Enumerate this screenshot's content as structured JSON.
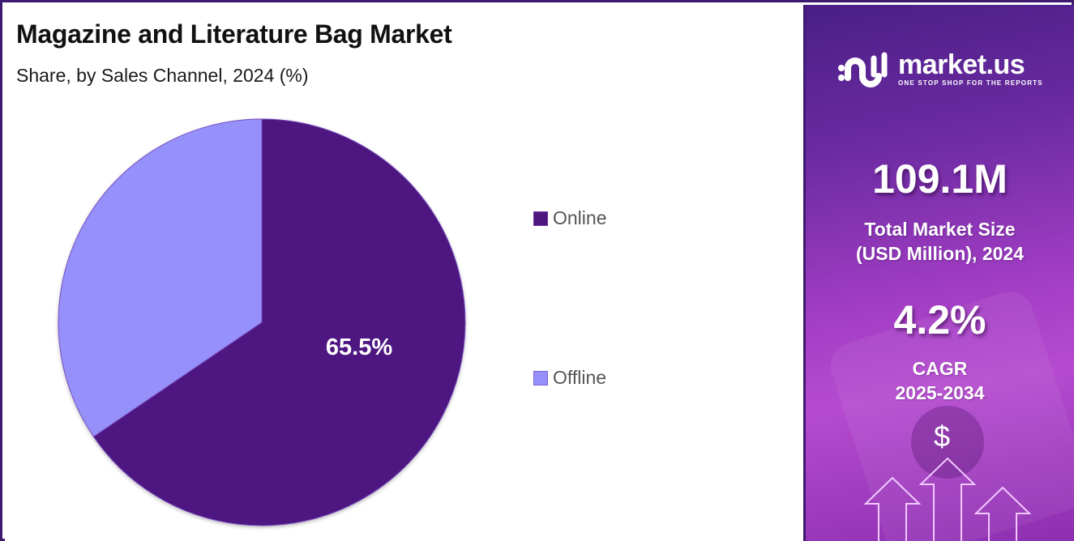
{
  "header": {
    "title": "Magazine and Literature Bag Market",
    "subtitle": "Share, by Sales Channel, 2024 (%)"
  },
  "chart_data": {
    "type": "pie",
    "title": "Magazine and Literature Bag Market",
    "subtitle": "Share, by Sales Channel, 2024 (%)",
    "categories": [
      "Online",
      "Offline"
    ],
    "values": [
      65.5,
      34.5
    ],
    "colors": [
      "#4e1780",
      "#9590fa"
    ],
    "data_labels": [
      "65.5%",
      ""
    ],
    "start_angle_deg": 0,
    "direction": "clockwise",
    "legend_position": "right"
  },
  "legend": {
    "items": [
      {
        "label": "Online",
        "color": "#4e1780"
      },
      {
        "label": "Offline",
        "color": "#9590fa"
      }
    ]
  },
  "pie_label": "65.5%",
  "sidebar": {
    "brand": "market.us",
    "tagline": "ONE STOP SHOP FOR THE REPORTS",
    "market_size_value": "109.1M",
    "market_size_label_1": "Total Market Size",
    "market_size_label_2": "(USD Million), 2024",
    "cagr_value": "4.2%",
    "cagr_label_1": "CAGR",
    "cagr_label_2": "2025-2034",
    "currency_symbol": "$",
    "colors": {
      "border": "#3d1a6e",
      "panel_top": "#4a1f86",
      "panel_mid": "#a43ec5"
    }
  }
}
